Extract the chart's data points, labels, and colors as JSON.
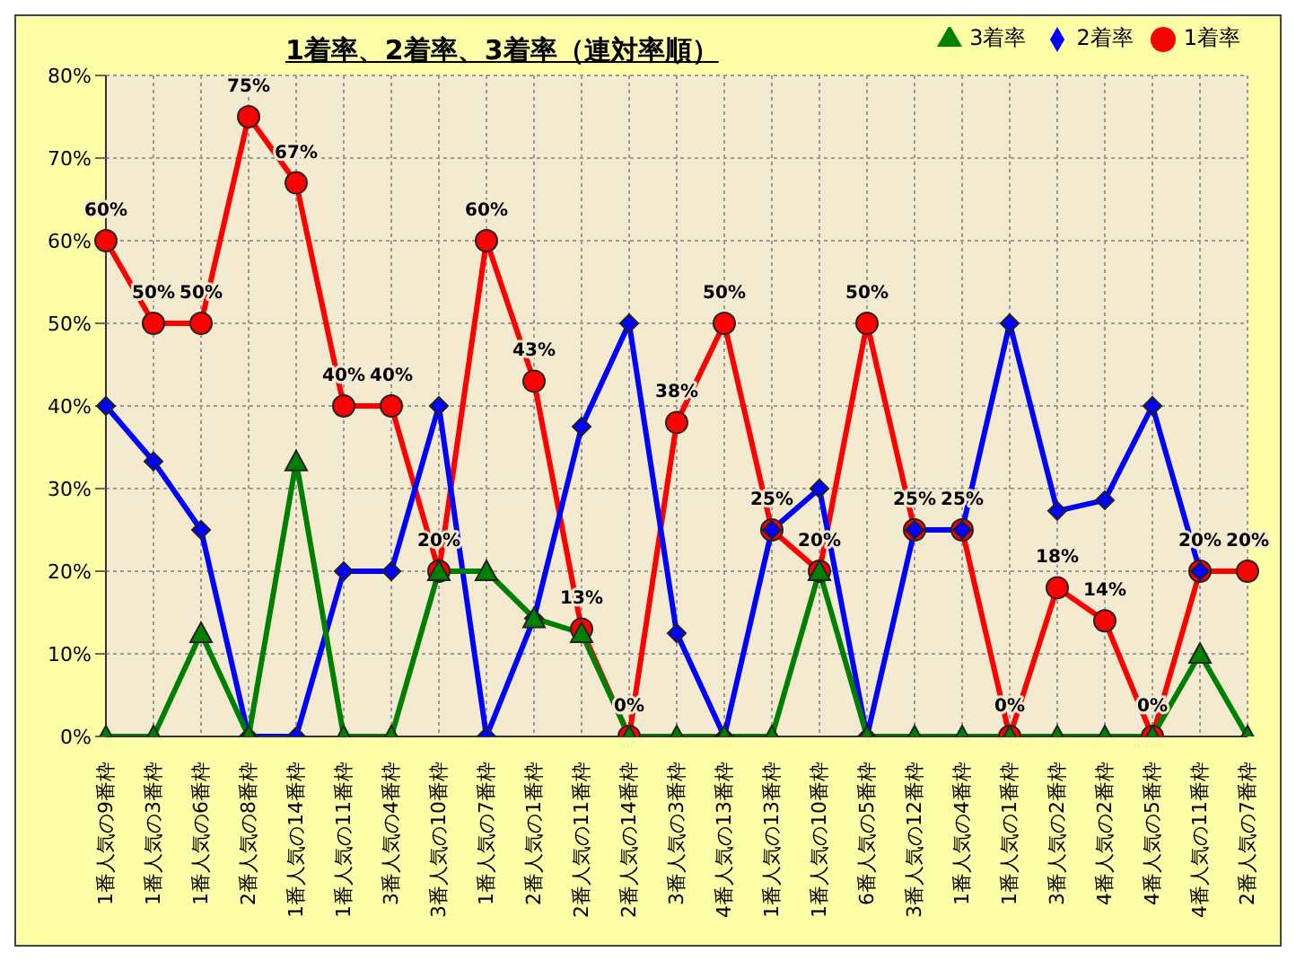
{
  "chart_data": {
    "type": "line",
    "title": "1着率、2着率、3着率（連対率順）",
    "categories": [
      "1番人気の9番枠",
      "1番人気の3番枠",
      "1番人気の6番枠",
      "2番人気の8番枠",
      "1番人気の14番枠",
      "1番人気の11番枠",
      "3番人気の4番枠",
      "3番人気の10番枠",
      "1番人気の7番枠",
      "2番人気の1番枠",
      "2番人気の11番枠",
      "2番人気の14番枠",
      "3番人気の3番枠",
      "4番人気の13番枠",
      "1番人気の13番枠",
      "1番人気の10番枠",
      "6番人気の5番枠",
      "3番人気の12番枠",
      "1番人気の4番枠",
      "1番人気の1番枠",
      "3番人気の2番枠",
      "4番人気の2番枠",
      "4番人気の5番枠",
      "4番人気の11番枠",
      "2番人気の7番枠"
    ],
    "series": [
      {
        "name": "3着率",
        "color": "#008000",
        "marker": "triangle",
        "values": [
          0,
          0,
          12.5,
          0,
          33.3,
          0,
          0,
          20,
          20,
          14.3,
          12.5,
          0,
          0,
          0,
          0,
          20,
          0,
          0,
          0,
          0,
          0,
          0,
          0,
          10,
          0
        ]
      },
      {
        "name": "2着率",
        "color": "#0000ff",
        "marker": "diamond",
        "values": [
          40,
          33.3,
          25,
          0,
          0,
          20,
          20,
          40,
          0,
          14.3,
          37.5,
          50,
          12.5,
          0,
          25,
          30,
          0,
          25,
          25,
          50,
          27.3,
          28.6,
          40,
          20,
          null
        ]
      },
      {
        "name": "1着率",
        "color": "#ff0000",
        "marker": "circle",
        "values": [
          60,
          50,
          50,
          75,
          67,
          40,
          40,
          20,
          60,
          43,
          13,
          0,
          38,
          50,
          25,
          20,
          50,
          25,
          25,
          0,
          18,
          14,
          0,
          20,
          20
        ],
        "value_labels": [
          "60%",
          "50%",
          "50%",
          "75%",
          "67%",
          "40%",
          "40%",
          "20%",
          "60%",
          "43%",
          "13%",
          "0%",
          "38%",
          "50%",
          "25%",
          "20%",
          "50%",
          "25%",
          "25%",
          "0%",
          "18%",
          "14%",
          "0%",
          "20%",
          "20%"
        ]
      }
    ],
    "ylim": [
      0,
      80
    ],
    "yticks": [
      {
        "value": 0,
        "label": "0%"
      },
      {
        "value": 10,
        "label": "10%"
      },
      {
        "value": 20,
        "label": "20%"
      },
      {
        "value": 30,
        "label": "30%"
      },
      {
        "value": 40,
        "label": "40%"
      },
      {
        "value": 50,
        "label": "50%"
      },
      {
        "value": 60,
        "label": "60%"
      },
      {
        "value": 70,
        "label": "70%"
      },
      {
        "value": 80,
        "label": "80%"
      }
    ],
    "grid": true,
    "legend": "top right",
    "line_style": "solid"
  }
}
